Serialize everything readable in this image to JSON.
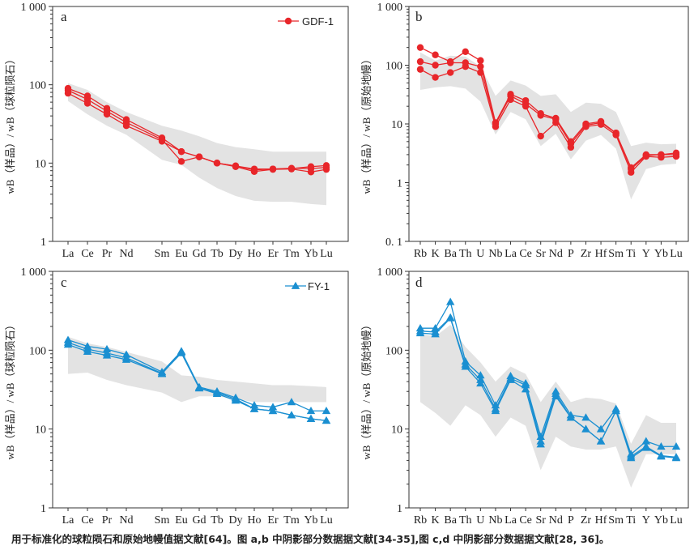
{
  "caption": "用于标准化的球粒陨石和原始地幔值据文献[64]。图 a,b 中阴影部分数据据文献[34-35],图 c,d 中阴影部分数据据文献[28, 36]。",
  "colors": {
    "red": "#e8262a",
    "blue": "#1a8fd1",
    "shade": "#e3e3e3"
  },
  "chart_data": [
    {
      "id": "a",
      "type": "line",
      "title": "a",
      "scale": "log",
      "ylim": [
        1,
        1000
      ],
      "yticks": [
        "1",
        "10",
        "100",
        "1 000"
      ],
      "ylabel": "wB（样品）/ wB（球粒陨石）",
      "categories": [
        "La",
        "Ce",
        "Pr",
        "Nd",
        "Sm",
        "Eu",
        "Gd",
        "Tb",
        "Dy",
        "Ho",
        "Er",
        "Tm",
        "Yb",
        "Lu"
      ],
      "legend": {
        "label": "GDF-1",
        "position": "top-right"
      },
      "marker": "circle",
      "color": "#e8262a",
      "series": [
        {
          "values": [
            90,
            72,
            50,
            36,
            21,
            14,
            12,
            10,
            9.2,
            8.2,
            8.4,
            8.5,
            9.0,
            9.3
          ]
        },
        {
          "values": [
            85,
            65,
            46,
            33,
            20,
            10.5,
            12,
            10,
            9.2,
            8.4,
            8.4,
            8.6,
            8.5,
            8.8
          ]
        },
        {
          "values": [
            78,
            58,
            42,
            30,
            19,
            14,
            12,
            10,
            9.0,
            7.8,
            8.3,
            8.4,
            7.7,
            8.3
          ]
        }
      ],
      "shade_upper": [
        105,
        86,
        60,
        45,
        30,
        26,
        22,
        18,
        16,
        15,
        14,
        14,
        14,
        14
      ],
      "shade_lower": [
        62,
        42,
        30,
        23,
        11,
        9.5,
        6.5,
        4.8,
        3.8,
        3.3,
        3.2,
        3.2,
        3.0,
        2.9
      ]
    },
    {
      "id": "b",
      "type": "line",
      "title": "b",
      "scale": "log",
      "ylim": [
        0.1,
        1000
      ],
      "yticks": [
        "0. 1",
        "1",
        "10",
        "100",
        "1 000"
      ],
      "ylabel": "wB（样品）/ wB（原始地幔）",
      "categories": [
        "Rb",
        "K",
        "Ba",
        "Th",
        "U",
        "Nb",
        "La",
        "Ce",
        "Sr",
        "Nd",
        "P",
        "Zr",
        "Hf",
        "Sm",
        "Ti",
        "Y",
        "Yb",
        "Lu"
      ],
      "marker": "circle",
      "color": "#e8262a",
      "series": [
        {
          "values": [
            200,
            150,
            115,
            170,
            120,
            10.5,
            32,
            25,
            15,
            12.5,
            5,
            10,
            11,
            7,
            1.8,
            3,
            3,
            3.2
          ]
        },
        {
          "values": [
            115,
            100,
            110,
            110,
            95,
            10,
            30,
            22,
            14,
            12,
            4.6,
            9.5,
            10.5,
            7,
            1.7,
            2.9,
            3,
            3
          ]
        },
        {
          "values": [
            85,
            62,
            75,
            95,
            75,
            9,
            26,
            20,
            6.2,
            10.5,
            4,
            9,
            9.8,
            6.5,
            1.5,
            2.8,
            2.7,
            2.8
          ]
        }
      ],
      "shade_upper": [
        165,
        120,
        145,
        140,
        95,
        30,
        55,
        45,
        30,
        32,
        16,
        23,
        22,
        16,
        4.2,
        4.8,
        4.5,
        4.6
      ],
      "shade_lower": [
        38,
        42,
        44,
        40,
        24,
        6.6,
        16,
        12,
        4.2,
        6.8,
        2.5,
        5.2,
        6.5,
        3.8,
        0.52,
        1.7,
        2.0,
        2.1
      ]
    },
    {
      "id": "c",
      "type": "line",
      "title": "c",
      "scale": "log",
      "ylim": [
        1,
        1000
      ],
      "yticks": [
        "1",
        "10",
        "100",
        "1 000"
      ],
      "ylabel": "wB（样品）/ wB（球粒陨石）",
      "categories": [
        "La",
        "Ce",
        "Pr",
        "Nd",
        "Sm",
        "Eu",
        "Gd",
        "Tb",
        "Dy",
        "Ho",
        "Er",
        "Tm",
        "Yb",
        "Lu"
      ],
      "legend": {
        "label": "FY-1",
        "position": "top-right"
      },
      "marker": "triangle",
      "color": "#1a8fd1",
      "series": [
        {
          "values": [
            135,
            112,
            103,
            88,
            53,
            97,
            34,
            30,
            25,
            20,
            19,
            22,
            17,
            17
          ]
        },
        {
          "values": [
            125,
            103,
            92,
            80,
            51,
            92,
            33,
            29,
            24,
            18,
            17,
            15,
            13.5,
            12.8
          ]
        },
        {
          "values": [
            118,
            96,
            86,
            76,
            50,
            96,
            33,
            28,
            23,
            18,
            17,
            15,
            13.5,
            12.8
          ]
        }
      ],
      "shade_upper": [
        148,
        122,
        110,
        95,
        72,
        48,
        46,
        42,
        40,
        38,
        36,
        36,
        35,
        34
      ],
      "shade_lower": [
        50,
        52,
        42,
        36,
        29,
        22,
        26,
        26,
        24,
        22,
        22,
        22,
        22,
        22
      ]
    },
    {
      "id": "d",
      "type": "line",
      "title": "d",
      "scale": "log",
      "ylim": [
        1,
        1000
      ],
      "yticks": [
        "1",
        "10",
        "100",
        "1 000"
      ],
      "ylabel": "wB（样品）/ wB（原始地幔）",
      "categories": [
        "Rb",
        "K",
        "Ba",
        "Th",
        "U",
        "Nb",
        "La",
        "Ce",
        "Sr",
        "Nd",
        "P",
        "Zr",
        "Hf",
        "Sm",
        "Ti",
        "Y",
        "Yb",
        "Lu"
      ],
      "marker": "triangle",
      "color": "#1a8fd1",
      "series": [
        {
          "values": [
            190,
            190,
            410,
            72,
            48,
            20,
            47,
            38,
            8,
            30,
            15,
            14,
            10,
            18,
            4.8,
            7,
            6,
            6
          ]
        },
        {
          "values": [
            175,
            170,
            260,
            66,
            42,
            18,
            44,
            36,
            7,
            28,
            14,
            10,
            7,
            17,
            4.5,
            6,
            4.6,
            4.4
          ]
        },
        {
          "values": [
            165,
            160,
            255,
            62,
            38,
            17,
            42,
            32,
            6.4,
            26,
            14,
            10,
            7,
            17,
            4.3,
            5.8,
            4.5,
            4.3
          ]
        }
      ],
      "shade_upper": [
        160,
        150,
        210,
        110,
        70,
        40,
        62,
        50,
        22,
        40,
        22,
        25,
        24,
        21,
        6.5,
        15,
        12,
        12
      ],
      "shade_lower": [
        22,
        16,
        11,
        20,
        15,
        8,
        14,
        11,
        3,
        8,
        6,
        5.5,
        5.5,
        6,
        1.8,
        4.8,
        4.8,
        4.8
      ]
    }
  ]
}
